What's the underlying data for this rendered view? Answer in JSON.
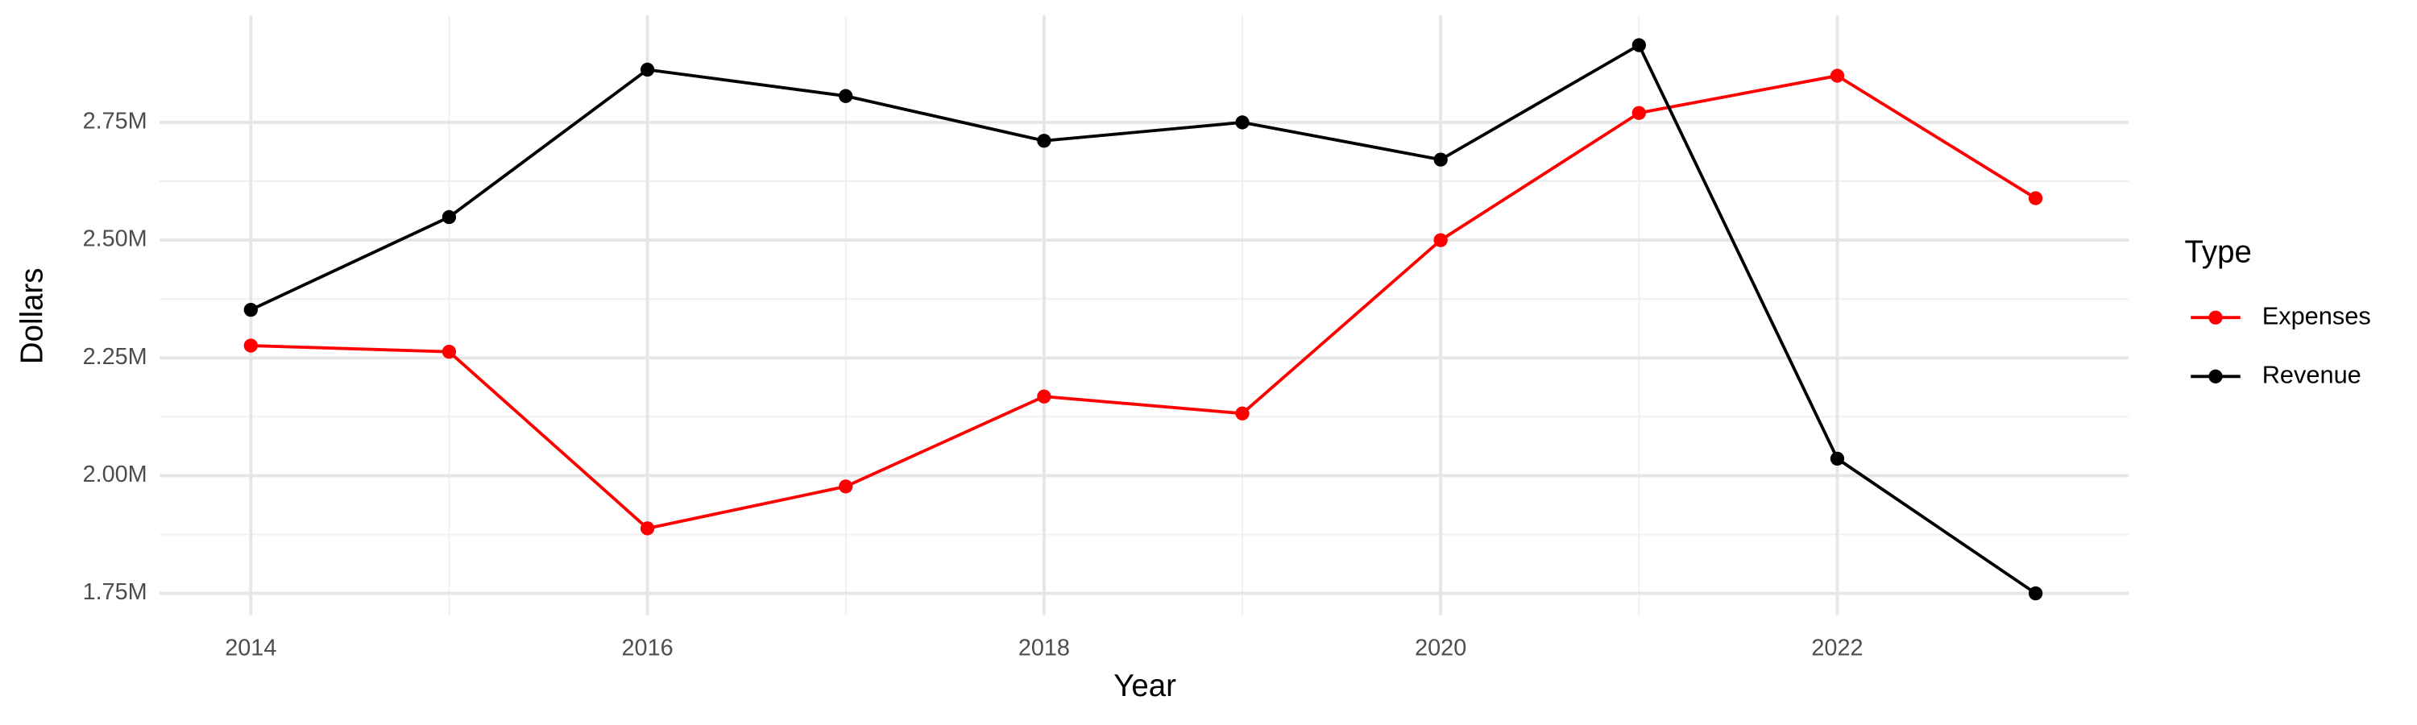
{
  "chart_data": {
    "type": "line",
    "x_label": "Year",
    "y_label": "Dollars",
    "x": [
      2014,
      2015,
      2016,
      2017,
      2018,
      2019,
      2020,
      2021,
      2022,
      2023
    ],
    "series": [
      {
        "name": "Expenses",
        "color": "#ff0000",
        "values": [
          2276000,
          2263000,
          1888000,
          1977000,
          2168000,
          2132000,
          2500000,
          2770000,
          2849000,
          2589000
        ]
      },
      {
        "name": "Revenue",
        "color": "#000000",
        "values": [
          2352000,
          2549000,
          2862000,
          2806000,
          2711000,
          2750000,
          2671000,
          2914000,
          2036000,
          1750000
        ]
      }
    ],
    "legend_title": "Type",
    "legend_position": "right",
    "xlim": [
      2013.54,
      2023.47
    ],
    "xticks": [
      2014,
      2016,
      2018,
      2020,
      2022
    ],
    "ylim": [
      1704000,
      2977000
    ],
    "yticks": [
      {
        "value": 1750000,
        "label": "1.75M"
      },
      {
        "value": 2000000,
        "label": "2.00M"
      },
      {
        "value": 2250000,
        "label": "2.25M"
      },
      {
        "value": 2500000,
        "label": "2.50M"
      },
      {
        "value": 2750000,
        "label": "2.75M"
      }
    ],
    "grid": true
  }
}
